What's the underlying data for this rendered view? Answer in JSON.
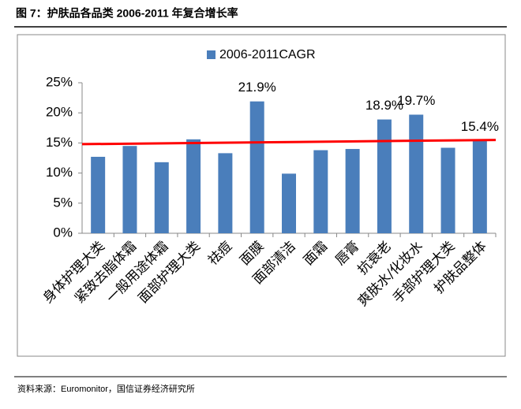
{
  "header": {
    "title": "图 7：护肤品各品类 2006-2011 年复合增长率"
  },
  "chart_data": {
    "type": "bar",
    "categories": [
      "身体护理大类",
      "紧致去脂体霜",
      "一般用途体霜",
      "面部护理大类",
      "祛痘",
      "面膜",
      "面部清洁",
      "面霜",
      "唇膏",
      "抗衰老",
      "爽肤水/化妆水",
      "手部护理大类",
      "护肤品整体"
    ],
    "series": [
      {
        "name": "2006-2011CAGR",
        "color": "#4a7ebb",
        "values": [
          12.7,
          14.5,
          11.8,
          15.6,
          13.3,
          21.9,
          9.9,
          13.8,
          14.0,
          18.9,
          19.7,
          14.2,
          15.4
        ],
        "value_labels": [
          null,
          null,
          null,
          null,
          null,
          "21.9%",
          null,
          null,
          null,
          "18.9%",
          "19.7%",
          null,
          "15.4%"
        ]
      }
    ],
    "trendline": {
      "color": "#ff0000",
      "start": 14.8,
      "end": 15.5
    },
    "ylim": [
      0,
      25
    ],
    "yticks": [
      {
        "value": 0,
        "label": "0%"
      },
      {
        "value": 5,
        "label": "5%"
      },
      {
        "value": 10,
        "label": "10%"
      },
      {
        "value": 15,
        "label": "15%"
      },
      {
        "value": 20,
        "label": "20%"
      },
      {
        "value": 25,
        "label": "25%"
      }
    ],
    "legend": "top"
  },
  "footer": {
    "source": "资料来源：Euromonitor，国信证券经济研究所"
  }
}
